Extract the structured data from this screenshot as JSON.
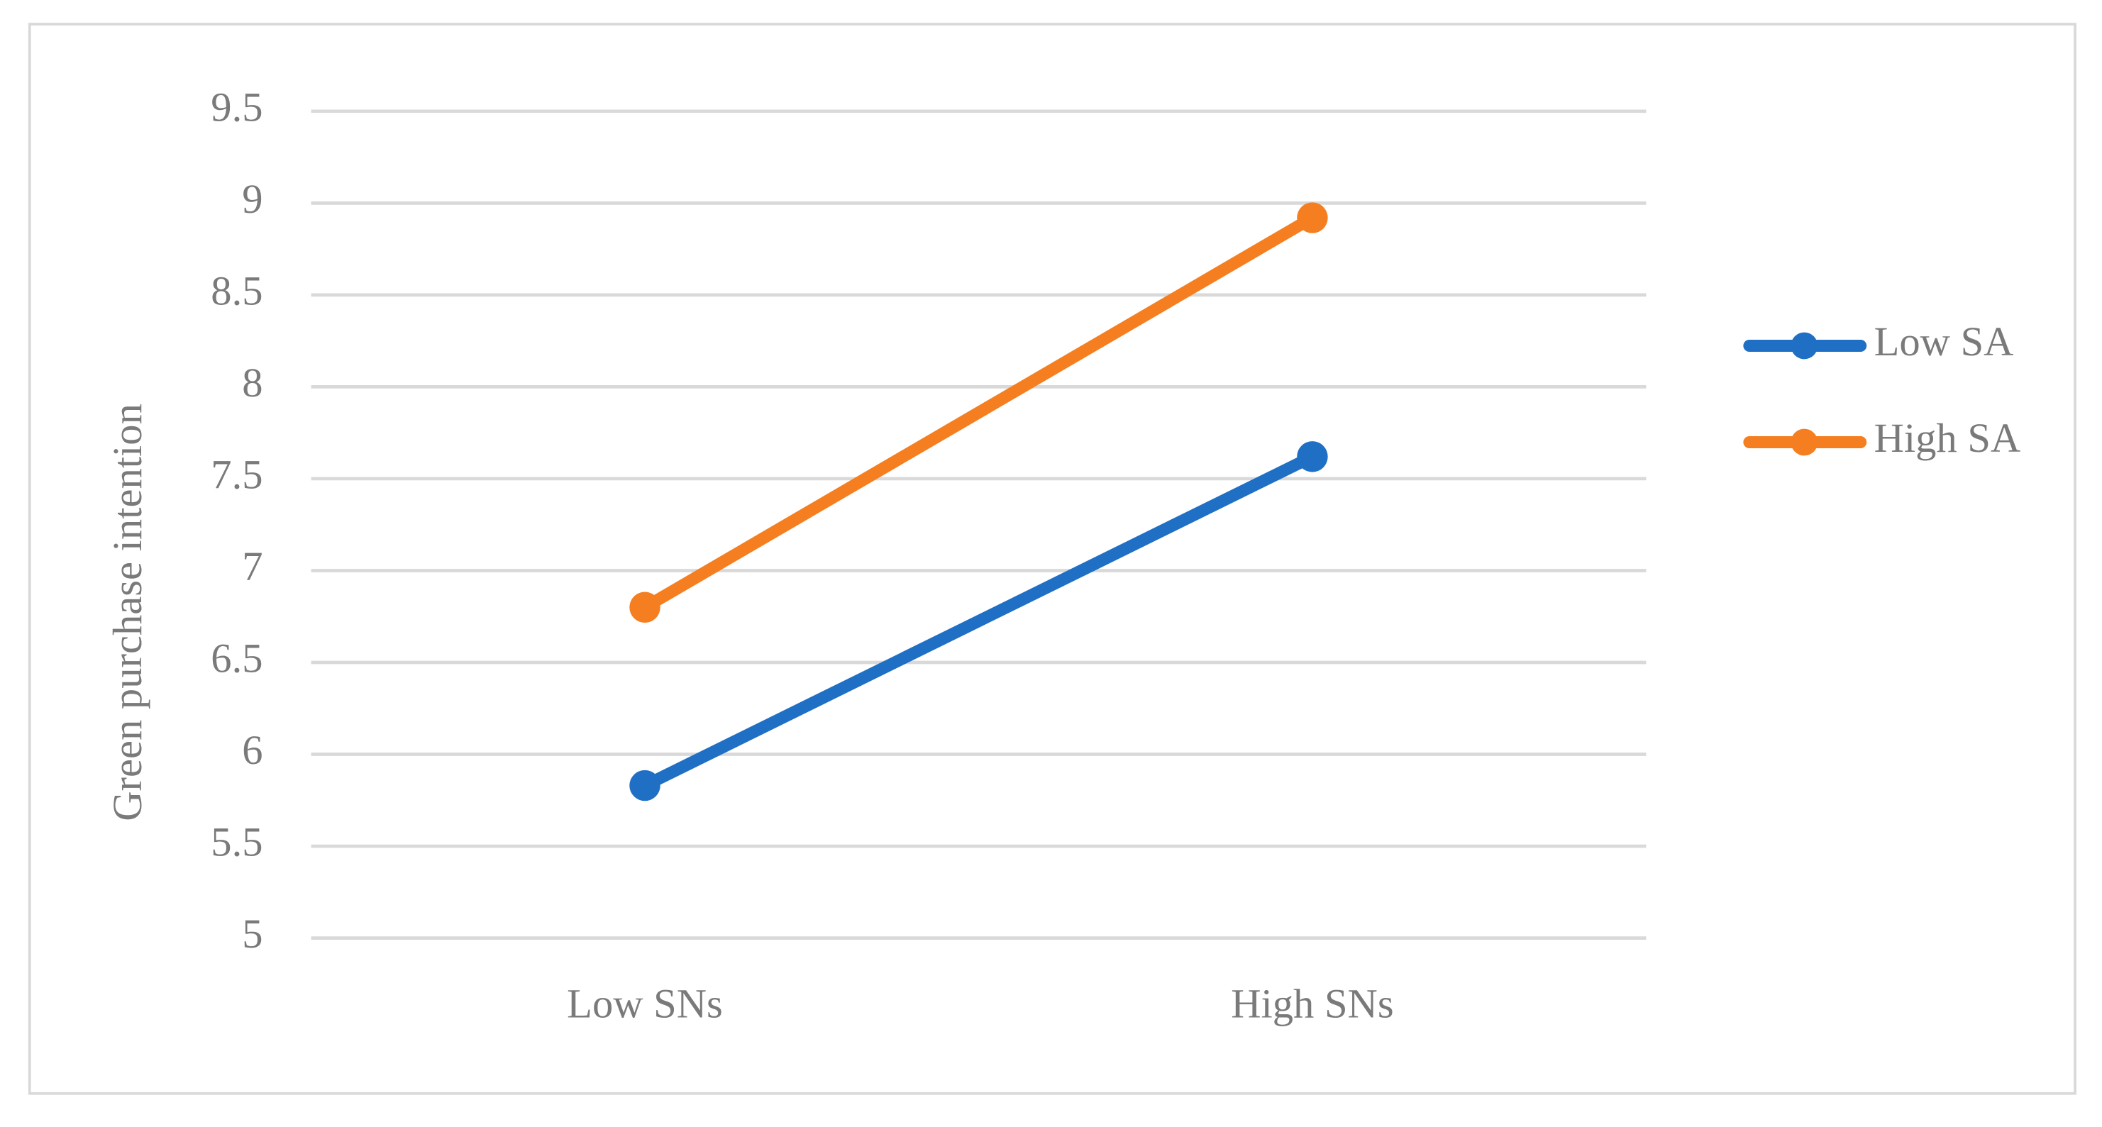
{
  "chart_data": {
    "type": "line",
    "y_label": "Green purchase intention",
    "categories": [
      "Low SNs",
      "High SNs"
    ],
    "series": [
      {
        "name": "Low SA",
        "color": "#1f6fc5",
        "values": [
          5.83,
          7.62
        ]
      },
      {
        "name": "High SA",
        "color": "#f57f20",
        "values": [
          6.8,
          8.92
        ]
      }
    ],
    "ylim": [
      5,
      9.5
    ],
    "yticks": [
      5,
      5.5,
      6,
      6.5,
      7,
      7.5,
      8,
      8.5,
      9,
      9.5
    ],
    "grid": true,
    "legend": "right"
  }
}
